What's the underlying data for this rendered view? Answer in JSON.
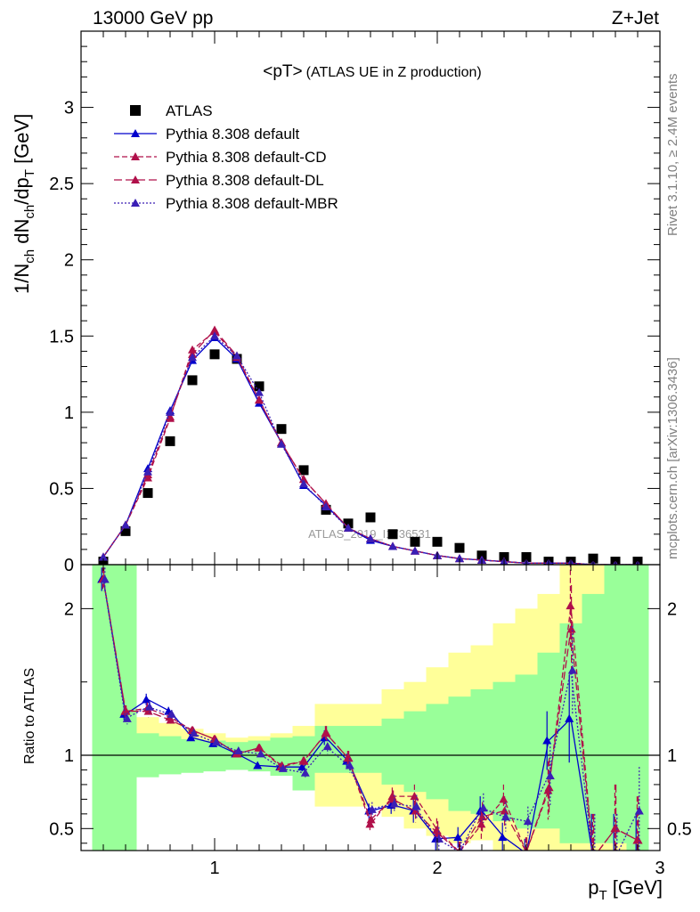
{
  "header": {
    "left": "13000 GeV pp",
    "right": "Z+Jet"
  },
  "side_labels": {
    "rivet": "Rivet 3.1.10, ≥ 2.4M events",
    "mcplots": "mcplots.cern.ch [arXiv:1306.3436]"
  },
  "watermark": "ATLAS_2019_I1736531",
  "chart_data": [
    {
      "type": "scatter",
      "panel": "main",
      "title": "<pT>",
      "subtitle": "(ATLAS UE in Z production)",
      "ylabel": "1/N_ch dN_ch/dp_T [GeV]",
      "ylabel_main": "1/N",
      "ylabel_sub1": "ch",
      "ylabel_mid": " dN",
      "ylabel_sub2": "ch",
      "ylabel_end": "/dp",
      "ylabel_sub3": "T",
      "ylabel_unit": " [GeV]",
      "xlim": [
        0.4,
        3.0
      ],
      "ylim": [
        0,
        3.5
      ],
      "yticks": [
        "0",
        "0.5",
        "1",
        "1.5",
        "2",
        "2.5",
        "3"
      ],
      "x": [
        0.5,
        0.6,
        0.7,
        0.8,
        0.9,
        1.0,
        1.1,
        1.2,
        1.3,
        1.4,
        1.5,
        1.6,
        1.7,
        1.8,
        1.9,
        2.0,
        2.1,
        2.2,
        2.3,
        2.4,
        2.5,
        2.6,
        2.7,
        2.8,
        2.9
      ],
      "series": [
        {
          "name": "ATLAS",
          "legend": "ATLAS",
          "color": "#000000",
          "style": "data",
          "values": [
            0.02,
            0.22,
            0.47,
            0.81,
            1.21,
            1.38,
            1.35,
            1.17,
            0.89,
            0.62,
            0.36,
            0.27,
            0.31,
            0.2,
            0.15,
            0.15,
            0.11,
            0.06,
            0.05,
            0.05,
            0.02,
            0.02,
            0.04,
            0.02,
            0.02
          ]
        },
        {
          "name": "Pythia 8.308 default",
          "legend": "Pythia 8.308 default",
          "color": "#0000cc",
          "style": "solid",
          "values": [
            0.05,
            0.26,
            0.63,
            1.01,
            1.34,
            1.49,
            1.35,
            1.06,
            0.8,
            0.52,
            0.39,
            0.24,
            0.16,
            0.12,
            0.09,
            0.06,
            0.04,
            0.03,
            0.02,
            0.01,
            0.01,
            0.01,
            0.0,
            0.0,
            0.0
          ]
        },
        {
          "name": "Pythia 8.308 default-CD",
          "legend": "Pythia 8.308 default-CD",
          "color": "#b0104a",
          "style": "dashed",
          "values": [
            0.05,
            0.26,
            0.57,
            0.96,
            1.41,
            1.53,
            1.36,
            1.08,
            0.8,
            0.56,
            0.4,
            0.24,
            0.17,
            0.12,
            0.09,
            0.06,
            0.04,
            0.03,
            0.02,
            0.01,
            0.01,
            0.01,
            0.0,
            0.0,
            0.0
          ]
        },
        {
          "name": "Pythia 8.308 default-DL",
          "legend": "Pythia 8.308 default-DL",
          "color": "#b0104a",
          "style": "longdash",
          "values": [
            0.05,
            0.26,
            0.59,
            0.97,
            1.38,
            1.54,
            1.37,
            1.08,
            0.8,
            0.56,
            0.4,
            0.24,
            0.17,
            0.12,
            0.09,
            0.06,
            0.04,
            0.03,
            0.02,
            0.01,
            0.01,
            0.01,
            0.0,
            0.0,
            0.0
          ]
        },
        {
          "name": "Pythia 8.308 default-MBR",
          "legend": "Pythia 8.308 default-MBR",
          "color": "#3a1fb5",
          "style": "dotted",
          "values": [
            0.05,
            0.26,
            0.61,
            1.0,
            1.36,
            1.5,
            1.37,
            1.13,
            0.79,
            0.53,
            0.38,
            0.24,
            0.17,
            0.12,
            0.09,
            0.06,
            0.04,
            0.03,
            0.02,
            0.01,
            0.01,
            0.01,
            0.0,
            0.0,
            0.0
          ]
        }
      ]
    },
    {
      "type": "scatter",
      "panel": "ratio",
      "ylabel": "Ratio to ATLAS",
      "xlabel": "p_T [GeV]",
      "xlabel_main": "p",
      "xlabel_sub": "T",
      "xlabel_unit": " [GeV]",
      "xlim": [
        0.4,
        3.0
      ],
      "ylim": [
        0.35,
        2.3
      ],
      "xticks": [
        "1",
        "2",
        "3"
      ],
      "yticks": [
        "0.5",
        "1",
        "2"
      ],
      "reference": 1.0,
      "band_yellow_low": [
        0.3,
        0.95,
        0.9,
        0.9,
        0.91,
        0.92,
        0.92,
        0.91,
        0.88,
        0.77,
        0.65,
        0.65,
        0.65,
        0.58,
        0.5,
        0.45,
        0.4,
        0.42,
        0.35,
        0.35,
        0.3,
        0.3,
        0.3,
        0.3,
        0.3
      ],
      "band_yellow_high": [
        2.4,
        1.3,
        1.26,
        1.22,
        1.18,
        1.15,
        1.12,
        1.13,
        1.15,
        1.2,
        1.35,
        1.35,
        1.35,
        1.45,
        1.5,
        1.6,
        1.7,
        1.75,
        1.9,
        2.0,
        2.1,
        2.3,
        2.4,
        2.4,
        2.2
      ],
      "band_green_low": [
        0.3,
        0.3,
        0.85,
        0.87,
        0.88,
        0.89,
        0.9,
        0.89,
        0.86,
        0.76,
        0.88,
        0.88,
        0.88,
        0.8,
        0.75,
        0.7,
        0.62,
        0.6,
        0.55,
        0.5,
        0.5,
        0.4,
        0.4,
        0.4,
        0.3
      ],
      "band_green_high": [
        2.3,
        2.3,
        1.15,
        1.13,
        1.11,
        1.1,
        1.09,
        1.1,
        1.12,
        1.13,
        1.2,
        1.2,
        1.2,
        1.25,
        1.3,
        1.35,
        1.4,
        1.45,
        1.5,
        1.55,
        1.7,
        1.9,
        2.1,
        2.3,
        2.3
      ],
      "x": [
        0.5,
        0.6,
        0.7,
        0.8,
        0.9,
        1.0,
        1.1,
        1.2,
        1.3,
        1.4,
        1.5,
        1.6,
        1.7,
        1.8,
        1.9,
        2.0,
        2.1,
        2.2,
        2.3,
        2.4,
        2.5,
        2.6,
        2.7,
        2.8,
        2.9
      ],
      "series": [
        {
          "name": "Pythia 8.308 default",
          "color": "#0000cc",
          "style": "solid",
          "values": [
            2.2,
            1.28,
            1.38,
            1.3,
            1.12,
            1.08,
            1.01,
            0.93,
            0.92,
            0.92,
            1.12,
            0.96,
            0.62,
            0.66,
            0.62,
            0.43,
            0.44,
            0.62,
            0.44,
            0.33,
            1.1,
            1.25,
            0.3,
            0.3,
            0.3
          ],
          "errors": [
            0.08,
            0.04,
            0.04,
            0.03,
            0.02,
            0.02,
            0.02,
            0.02,
            0.02,
            0.03,
            0.05,
            0.05,
            0.05,
            0.06,
            0.08,
            0.08,
            0.07,
            0.1,
            0.1,
            0.1,
            0.2,
            0.3,
            0.3,
            0.3,
            0.3
          ]
        },
        {
          "name": "Pythia 8.308 default-CD",
          "color": "#b0104a",
          "style": "dashed",
          "values": [
            2.2,
            1.3,
            1.32,
            1.26,
            1.17,
            1.11,
            1.01,
            1.05,
            0.92,
            0.96,
            1.15,
            0.98,
            0.53,
            0.72,
            0.72,
            0.49,
            0.34,
            0.53,
            0.7,
            0.34,
            0.76,
            2.02,
            0.3,
            0.5,
            0.42
          ],
          "errors": [
            0.08,
            0.04,
            0.04,
            0.03,
            0.02,
            0.02,
            0.02,
            0.02,
            0.02,
            0.03,
            0.05,
            0.05,
            0.05,
            0.06,
            0.08,
            0.08,
            0.07,
            0.1,
            0.1,
            0.1,
            0.2,
            0.3,
            0.3,
            0.3,
            0.3
          ]
        },
        {
          "name": "Pythia 8.308 default-DL",
          "color": "#b0104a",
          "style": "longdash",
          "values": [
            2.2,
            1.3,
            1.3,
            1.24,
            1.17,
            1.11,
            1.01,
            1.05,
            0.93,
            0.96,
            1.15,
            0.98,
            0.56,
            0.7,
            0.62,
            0.47,
            0.34,
            0.58,
            0.62,
            0.34,
            0.78,
            1.86,
            0.3,
            0.5,
            0.42
          ],
          "errors": [
            0.08,
            0.04,
            0.04,
            0.03,
            0.02,
            0.02,
            0.02,
            0.02,
            0.02,
            0.03,
            0.05,
            0.05,
            0.05,
            0.06,
            0.08,
            0.08,
            0.07,
            0.1,
            0.1,
            0.1,
            0.2,
            0.3,
            0.3,
            0.3,
            0.3
          ]
        },
        {
          "name": "Pythia 8.308 default-MBR",
          "color": "#3a1fb5",
          "style": "dotted",
          "values": [
            2.2,
            1.25,
            1.33,
            1.28,
            1.15,
            1.09,
            1.03,
            1.01,
            0.91,
            0.88,
            1.06,
            0.93,
            0.63,
            0.67,
            0.65,
            0.43,
            0.34,
            0.64,
            0.58,
            0.55,
            0.86,
            1.58,
            0.3,
            0.3,
            0.62
          ],
          "errors": [
            0.08,
            0.04,
            0.04,
            0.03,
            0.02,
            0.02,
            0.02,
            0.02,
            0.02,
            0.03,
            0.05,
            0.05,
            0.05,
            0.06,
            0.08,
            0.08,
            0.07,
            0.1,
            0.1,
            0.1,
            0.2,
            0.3,
            0.3,
            0.3,
            0.3
          ]
        }
      ]
    }
  ]
}
